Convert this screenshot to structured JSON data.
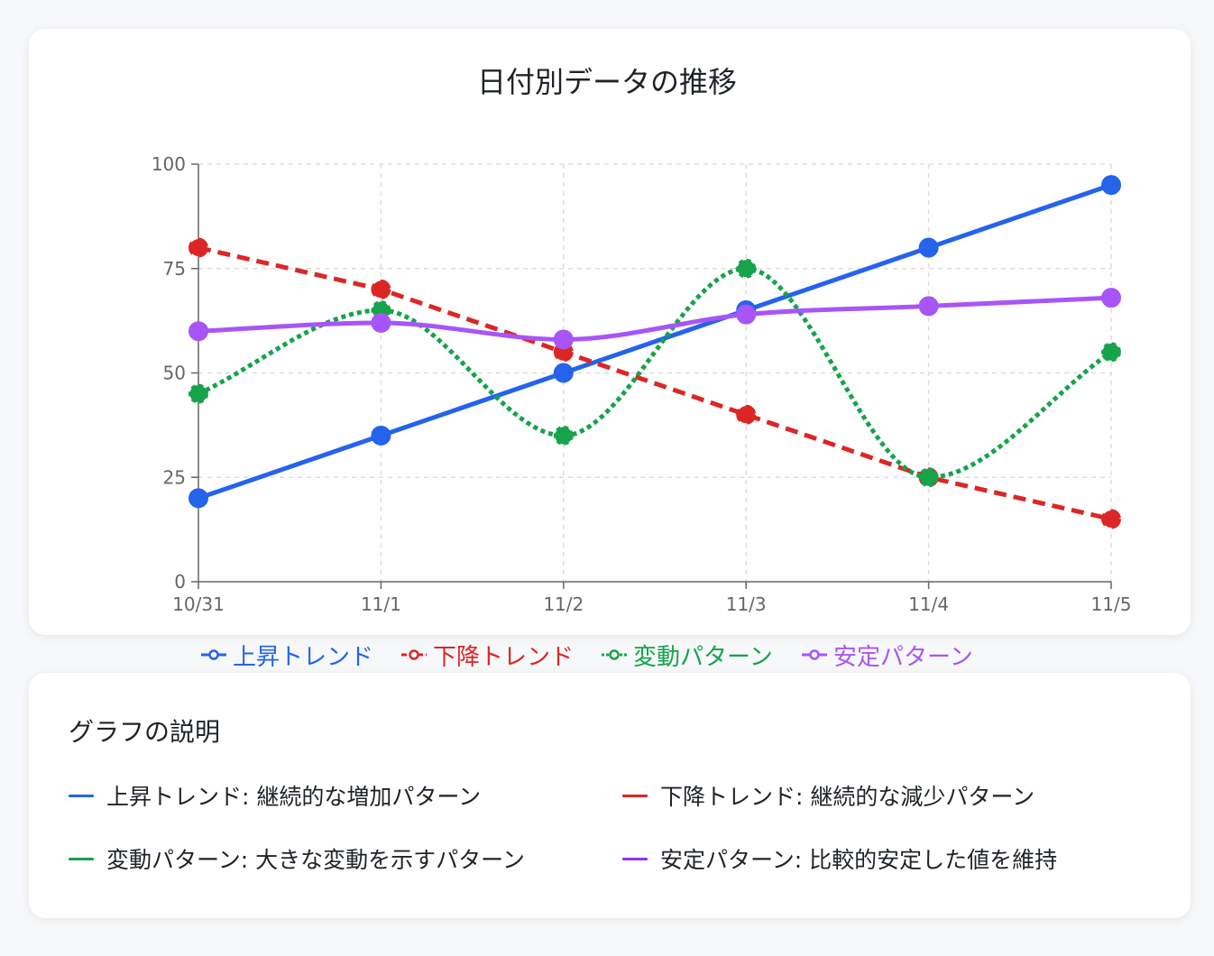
{
  "chart_data": {
    "type": "line",
    "title": "日付別データの推移",
    "xlabel": "",
    "ylabel": "",
    "categories": [
      "10/31",
      "11/1",
      "11/2",
      "11/3",
      "11/4",
      "11/5"
    ],
    "ylim": [
      0,
      100
    ],
    "yticks": [
      0,
      25,
      50,
      75,
      100
    ],
    "grid": true,
    "legend_position": "bottom",
    "series": [
      {
        "name": "上昇トレンド",
        "color": "#2563eb",
        "style": "solid",
        "curve": "linear",
        "values": [
          20,
          35,
          50,
          65,
          80,
          95
        ]
      },
      {
        "name": "下降トレンド",
        "color": "#dc2626",
        "style": "dashed",
        "curve": "linear",
        "values": [
          80,
          70,
          55,
          40,
          25,
          15
        ]
      },
      {
        "name": "変動パターン",
        "color": "#16a34a",
        "style": "dotted",
        "curve": "smooth",
        "values": [
          45,
          65,
          35,
          75,
          25,
          55
        ]
      },
      {
        "name": "安定パターン",
        "color": "#a855f7",
        "style": "solid",
        "curve": "smooth",
        "values": [
          60,
          62,
          58,
          64,
          66,
          68
        ]
      }
    ]
  },
  "description": {
    "title": "グラフの説明",
    "items": [
      {
        "text": "上昇トレンド: 継続的な増加パターン",
        "color": "#2563eb"
      },
      {
        "text": "下降トレンド: 継続的な減少パターン",
        "color": "#dc2626"
      },
      {
        "text": "変動パターン: 大きな変動を示すパターン",
        "color": "#16a34a"
      },
      {
        "text": "安定パターン: 比較的安定した値を維持",
        "color": "#9333ea"
      }
    ]
  }
}
